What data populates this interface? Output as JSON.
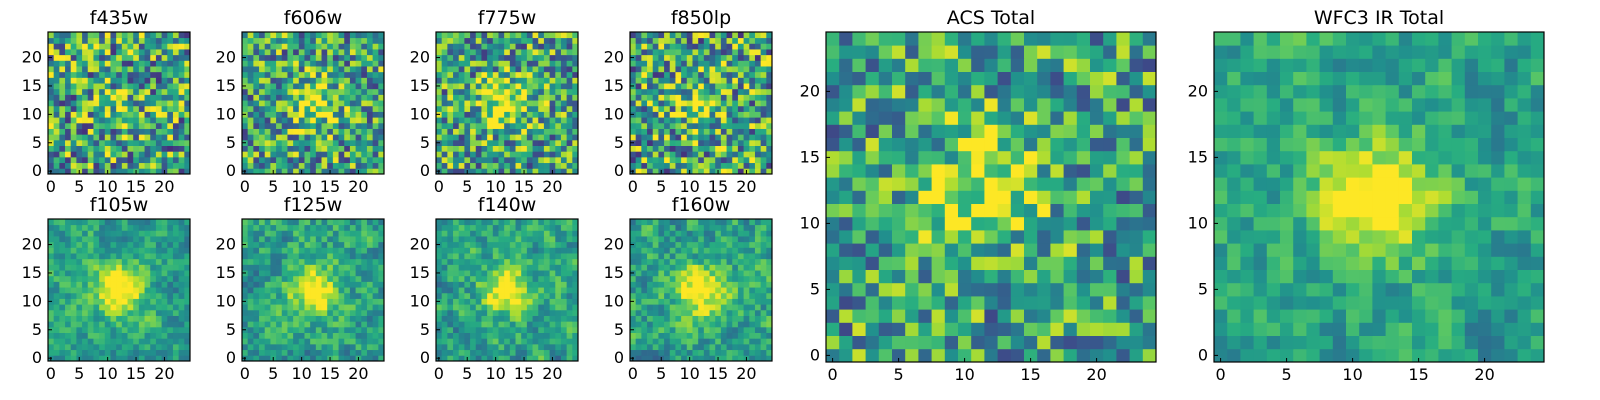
{
  "figure": {
    "colormap": "viridis",
    "grid": "off",
    "panels": [
      {
        "title": "f435w",
        "xticks": [
          "0",
          "5",
          "10",
          "15",
          "20"
        ],
        "yticks": [
          "0",
          "5",
          "10",
          "15",
          "20"
        ]
      },
      {
        "title": "f606w",
        "xticks": [
          "0",
          "5",
          "10",
          "15",
          "20"
        ],
        "yticks": [
          "0",
          "5",
          "10",
          "15",
          "20"
        ]
      },
      {
        "title": "f775w",
        "xticks": [
          "0",
          "5",
          "10",
          "15",
          "20"
        ],
        "yticks": [
          "0",
          "5",
          "10",
          "15",
          "20"
        ]
      },
      {
        "title": "f850lp",
        "xticks": [
          "0",
          "5",
          "10",
          "15",
          "20"
        ],
        "yticks": [
          "0",
          "5",
          "10",
          "15",
          "20"
        ]
      },
      {
        "title": "f105w",
        "xticks": [
          "0",
          "5",
          "10",
          "15",
          "20"
        ],
        "yticks": [
          "0",
          "5",
          "10",
          "15",
          "20"
        ]
      },
      {
        "title": "f125w",
        "xticks": [
          "0",
          "5",
          "10",
          "15",
          "20"
        ],
        "yticks": [
          "0",
          "5",
          "10",
          "15",
          "20"
        ]
      },
      {
        "title": "f140w",
        "xticks": [
          "0",
          "5",
          "10",
          "15",
          "20"
        ],
        "yticks": [
          "0",
          "5",
          "10",
          "15",
          "20"
        ]
      },
      {
        "title": "f160w",
        "xticks": [
          "0",
          "5",
          "10",
          "15",
          "20"
        ],
        "yticks": [
          "0",
          "5",
          "10",
          "15",
          "20"
        ]
      },
      {
        "title": "ACS Total",
        "xticks": [
          "0",
          "5",
          "10",
          "15",
          "20"
        ],
        "yticks": [
          "0",
          "5",
          "10",
          "15",
          "20"
        ]
      },
      {
        "title": "WFC3 IR Total",
        "xticks": [
          "0",
          "5",
          "10",
          "15",
          "20"
        ],
        "yticks": [
          "0",
          "5",
          "10",
          "15",
          "20"
        ]
      }
    ]
  },
  "chart_data": [
    {
      "type": "heatmap",
      "title": "f435w",
      "grid_size": [
        25,
        25
      ],
      "xlim": [
        -0.5,
        24.5
      ],
      "ylim": [
        -0.5,
        24.5
      ],
      "colormap": "viridis",
      "blob": {
        "center": [
          12,
          12
        ],
        "strength": 0.15
      },
      "noise": 0.55,
      "seed": 11
    },
    {
      "type": "heatmap",
      "title": "f606w",
      "grid_size": [
        25,
        25
      ],
      "xlim": [
        -0.5,
        24.5
      ],
      "ylim": [
        -0.5,
        24.5
      ],
      "colormap": "viridis",
      "blob": {
        "center": [
          12,
          12
        ],
        "strength": 0.4
      },
      "noise": 0.5,
      "seed": 23
    },
    {
      "type": "heatmap",
      "title": "f775w",
      "grid_size": [
        25,
        25
      ],
      "xlim": [
        -0.5,
        24.5
      ],
      "ylim": [
        -0.5,
        24.5
      ],
      "colormap": "viridis",
      "blob": {
        "center": [
          12,
          12
        ],
        "strength": 0.45
      },
      "noise": 0.5,
      "seed": 37
    },
    {
      "type": "heatmap",
      "title": "f850lp",
      "grid_size": [
        25,
        25
      ],
      "xlim": [
        -0.5,
        24.5
      ],
      "ylim": [
        -0.5,
        24.5
      ],
      "colormap": "viridis",
      "blob": {
        "center": [
          12,
          12
        ],
        "strength": 0.3
      },
      "noise": 0.55,
      "seed": 41
    },
    {
      "type": "heatmap",
      "title": "f105w",
      "grid_size": [
        25,
        25
      ],
      "xlim": [
        -0.5,
        24.5
      ],
      "ylim": [
        -0.5,
        24.5
      ],
      "colormap": "viridis",
      "blob": {
        "center": [
          12,
          12
        ],
        "strength": 0.55
      },
      "noise": 0.35,
      "seed": 53,
      "smooth": true
    },
    {
      "type": "heatmap",
      "title": "f125w",
      "grid_size": [
        25,
        25
      ],
      "xlim": [
        -0.5,
        24.5
      ],
      "ylim": [
        -0.5,
        24.5
      ],
      "colormap": "viridis",
      "blob": {
        "center": [
          12,
          12
        ],
        "strength": 0.5
      },
      "noise": 0.4,
      "seed": 67,
      "smooth": true
    },
    {
      "type": "heatmap",
      "title": "f140w",
      "grid_size": [
        25,
        25
      ],
      "xlim": [
        -0.5,
        24.5
      ],
      "ylim": [
        -0.5,
        24.5
      ],
      "colormap": "viridis",
      "blob": {
        "center": [
          12,
          12
        ],
        "strength": 0.5
      },
      "noise": 0.4,
      "seed": 79,
      "smooth": true
    },
    {
      "type": "heatmap",
      "title": "f160w",
      "grid_size": [
        25,
        25
      ],
      "xlim": [
        -0.5,
        24.5
      ],
      "ylim": [
        -0.5,
        24.5
      ],
      "colormap": "viridis",
      "blob": {
        "center": [
          12,
          12
        ],
        "strength": 0.5
      },
      "noise": 0.4,
      "seed": 97,
      "smooth": true
    },
    {
      "type": "heatmap",
      "title": "ACS Total",
      "grid_size": [
        25,
        25
      ],
      "xlim": [
        -0.5,
        24.5
      ],
      "ylim": [
        -0.5,
        24.5
      ],
      "colormap": "viridis",
      "blob": {
        "center": [
          12,
          13
        ],
        "strength": 0.45
      },
      "noise": 0.45,
      "seed": 101
    },
    {
      "type": "heatmap",
      "title": "WFC3 IR Total",
      "grid_size": [
        25,
        25
      ],
      "xlim": [
        -0.5,
        24.5
      ],
      "ylim": [
        -0.5,
        24.5
      ],
      "colormap": "viridis",
      "blob": {
        "center": [
          12,
          12
        ],
        "strength": 0.6
      },
      "noise": 0.35,
      "seed": 131,
      "smooth": true
    }
  ]
}
